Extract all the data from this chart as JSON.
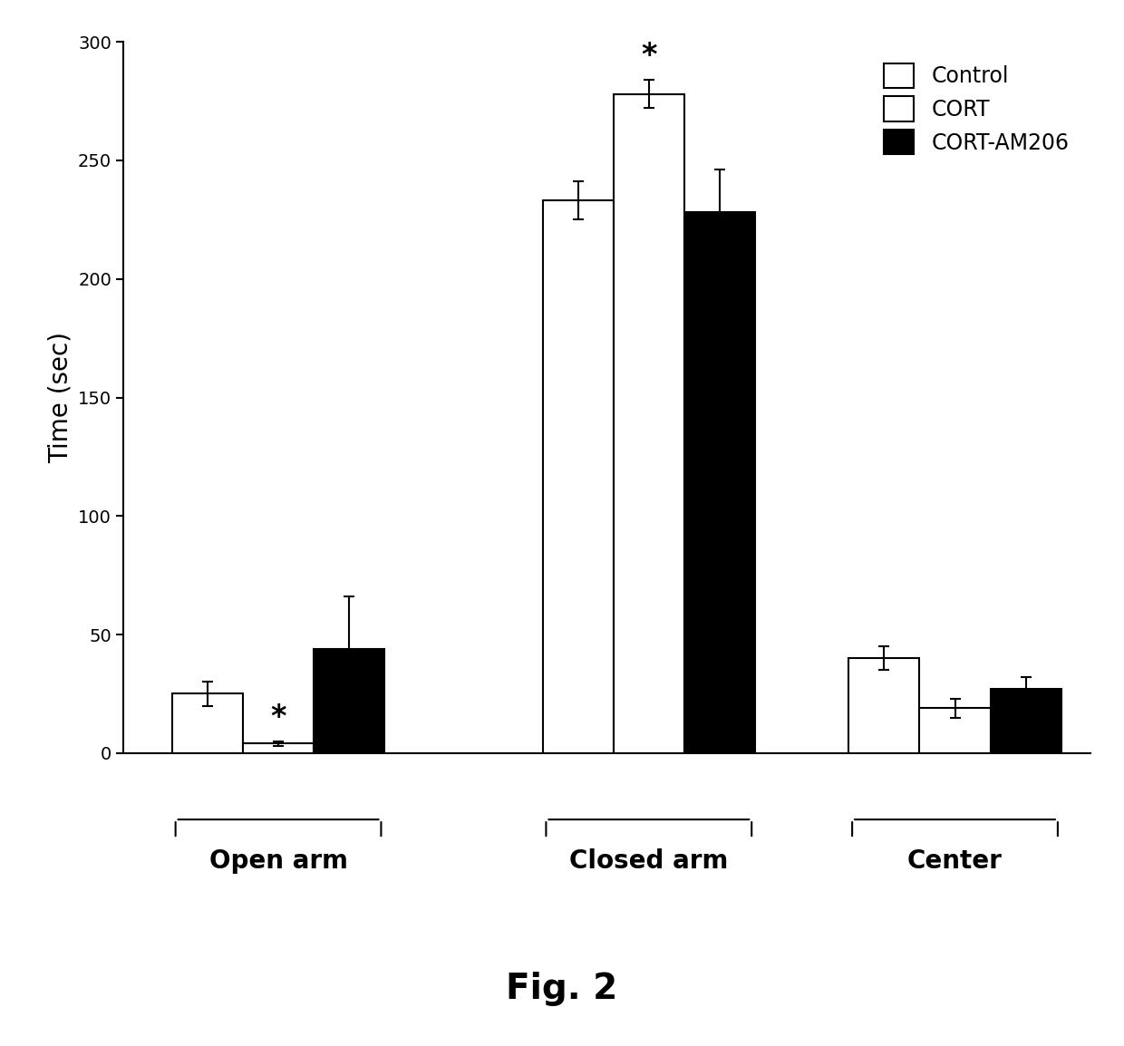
{
  "title": "Fig. 2",
  "ylabel": "Time (sec)",
  "ylim": [
    0,
    300
  ],
  "yticks": [
    0,
    50,
    100,
    150,
    200,
    250,
    300
  ],
  "groups": [
    "Open arm",
    "Closed arm",
    "Center"
  ],
  "series_labels": [
    "Control",
    "CORT",
    "CORT-AM206"
  ],
  "series_colors": [
    "#ffffff",
    "#ffffff",
    "#000000"
  ],
  "series_edgecolors": [
    "#000000",
    "#000000",
    "#000000"
  ],
  "bar_values": [
    [
      25,
      4,
      44
    ],
    [
      233,
      278,
      228
    ],
    [
      40,
      19,
      27
    ]
  ],
  "bar_errors": [
    [
      5,
      1,
      22
    ],
    [
      8,
      6,
      18
    ],
    [
      5,
      4,
      5
    ]
  ],
  "bar_width": 0.22,
  "background_color": "#ffffff",
  "tick_label_fontsize": 14,
  "ylabel_fontsize": 20,
  "legend_fontsize": 17,
  "title_fontsize": 28,
  "star_fontsize": 24,
  "group_label_fontsize": 20,
  "xtick_fontsize": 13
}
